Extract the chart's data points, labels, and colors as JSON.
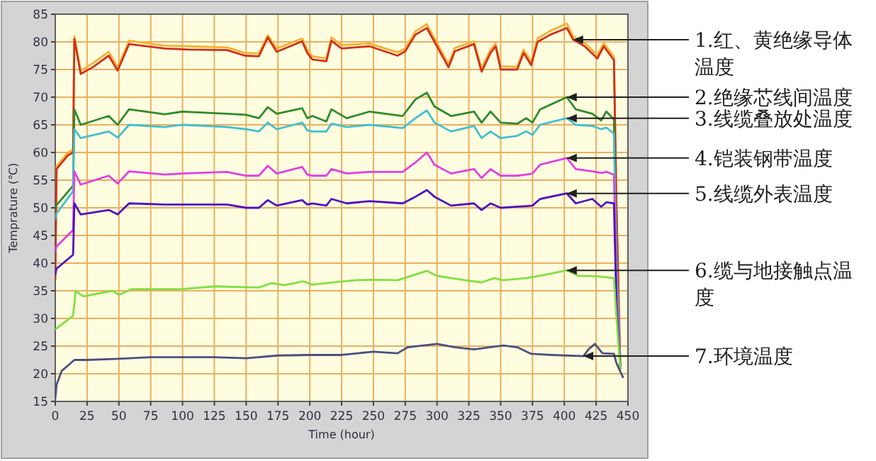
{
  "chart_data": {
    "type": "line",
    "xlabel": "Time (hour)",
    "ylabel": "Temprature (℃)",
    "xlim": [
      0,
      450
    ],
    "ylim": [
      15,
      85
    ],
    "xticks": [
      0,
      25,
      50,
      75,
      100,
      125,
      150,
      175,
      200,
      225,
      250,
      275,
      300,
      325,
      350,
      375,
      400,
      425,
      450
    ],
    "yticks": [
      15,
      20,
      25,
      30,
      35,
      40,
      45,
      50,
      55,
      60,
      65,
      70,
      75,
      80,
      85
    ],
    "grid": true,
    "series": [
      {
        "color": "#f8b030",
        "x": [
          0,
          1,
          10,
          14,
          15,
          20,
          30,
          42,
          49,
          58,
          86,
          105,
          135,
          149,
          160,
          167,
          174,
          194,
          198,
          202,
          213,
          217,
          225,
          247,
          269,
          275,
          283,
          292,
          298,
          309,
          314,
          329,
          335,
          342,
          346,
          350,
          363,
          368,
          374,
          379,
          389,
          402,
          407,
          416,
          426,
          431,
          439,
          441,
          444
        ],
        "values": [
          37.5,
          57.5,
          60,
          60.5,
          81,
          74.8,
          76.2,
          78.2,
          75.4,
          80.2,
          79.3,
          79.2,
          79,
          78,
          77.9,
          81.2,
          78.8,
          80.6,
          78.6,
          77.4,
          77,
          80.8,
          79.4,
          79.7,
          78.1,
          78.8,
          81.9,
          83.2,
          80.6,
          76,
          78.9,
          80.1,
          75.2,
          78.6,
          79.7,
          75.6,
          75.5,
          78.6,
          76.4,
          80.6,
          82,
          83.3,
          81,
          79.8,
          77.6,
          79.8,
          77.3,
          50,
          21.5
        ]
      },
      {
        "name": "1.红、黄绝缘导体温度",
        "color": "#d03018",
        "x": [
          0,
          1,
          10,
          14,
          15,
          20,
          30,
          42,
          49,
          58,
          86,
          105,
          135,
          149,
          160,
          167,
          174,
          194,
          198,
          202,
          213,
          217,
          225,
          247,
          269,
          275,
          283,
          292,
          298,
          309,
          314,
          329,
          335,
          342,
          346,
          350,
          363,
          368,
          374,
          379,
          389,
          402,
          407,
          416,
          426,
          431,
          439,
          441,
          444
        ],
        "values": [
          37,
          57,
          59.5,
          60,
          80.5,
          74.2,
          75.5,
          77.5,
          74.8,
          79.6,
          78.8,
          78.6,
          78.5,
          77.5,
          77.4,
          80.8,
          78.2,
          80.1,
          78,
          76.8,
          76.5,
          80.2,
          78.8,
          79.2,
          77.5,
          78.3,
          81.3,
          82.5,
          80,
          75.4,
          78.3,
          79.6,
          74.6,
          78,
          79.2,
          75,
          75,
          78,
          75.8,
          80,
          81.3,
          82.5,
          80.4,
          79.2,
          77,
          79.2,
          76.7,
          50,
          21
        ]
      },
      {
        "name": "2.绝缘芯线间温度",
        "color": "#2e8b2e",
        "x": [
          0,
          1,
          14,
          15,
          20,
          42,
          49,
          58,
          86,
          100,
          135,
          150,
          160,
          167,
          174,
          194,
          198,
          202,
          213,
          217,
          229,
          247,
          273,
          283,
          292,
          298,
          311,
          329,
          335,
          342,
          350,
          363,
          370,
          375,
          381,
          402,
          409,
          422,
          429,
          433,
          439,
          441,
          444
        ],
        "values": [
          50,
          50.5,
          54,
          67.8,
          65,
          66.6,
          65,
          67.8,
          66.9,
          67.4,
          67,
          66.8,
          66.2,
          68.2,
          67,
          68,
          66.2,
          66.6,
          65.6,
          67.8,
          66.2,
          67.4,
          66.6,
          69.6,
          70.8,
          68.3,
          66.6,
          67.4,
          65.4,
          67.4,
          65.4,
          65.2,
          66.2,
          65.4,
          67.8,
          70,
          67.8,
          67,
          65.8,
          67.4,
          66,
          40,
          21
        ]
      },
      {
        "name": "3.线缆叠放处温度",
        "color": "#40c0d0",
        "x": [
          0,
          1,
          14,
          15,
          20,
          42,
          49,
          58,
          86,
          100,
          135,
          150,
          160,
          167,
          174,
          194,
          198,
          202,
          213,
          217,
          229,
          247,
          273,
          283,
          292,
          298,
          311,
          329,
          335,
          342,
          350,
          363,
          370,
          375,
          381,
          402,
          409,
          422,
          429,
          433,
          439,
          441,
          444
        ],
        "values": [
          48,
          49,
          53,
          64.2,
          62.6,
          63.8,
          62.7,
          65,
          64.6,
          65,
          64.6,
          64.2,
          63.8,
          65.4,
          64.2,
          65.4,
          64,
          63.8,
          63.8,
          65.2,
          64.6,
          65,
          64.4,
          66.2,
          67.6,
          65.4,
          63.8,
          64.8,
          62.6,
          63.8,
          62.6,
          63,
          63.8,
          63.2,
          65,
          66.2,
          65,
          64.8,
          64.2,
          64.5,
          63.4,
          40,
          21
        ]
      },
      {
        "name": "4.铠装钢带温度",
        "color": "#e040e0",
        "x": [
          0,
          1,
          14,
          15,
          20,
          42,
          49,
          58,
          86,
          100,
          135,
          150,
          160,
          167,
          174,
          194,
          198,
          202,
          213,
          217,
          229,
          247,
          273,
          283,
          292,
          298,
          311,
          329,
          335,
          342,
          350,
          363,
          370,
          375,
          381,
          402,
          409,
          422,
          429,
          433,
          439,
          441,
          444
        ],
        "values": [
          42,
          43,
          46,
          56.6,
          54.2,
          55.8,
          54.4,
          56.6,
          56,
          56.2,
          56.5,
          55.8,
          55.8,
          57.6,
          56.2,
          57.4,
          56,
          55.8,
          55.8,
          57,
          56.2,
          56.5,
          56.5,
          58.2,
          60,
          57.8,
          56.2,
          57,
          55.4,
          57,
          55.8,
          55.8,
          56,
          56.2,
          57.8,
          59,
          57,
          56.6,
          56.3,
          56.5,
          56,
          35,
          21
        ]
      },
      {
        "name": "5.线缆外表温度",
        "color": "#5010c0",
        "x": [
          0,
          1,
          14,
          15,
          20,
          42,
          49,
          58,
          86,
          100,
          135,
          150,
          160,
          167,
          174,
          194,
          198,
          202,
          213,
          217,
          229,
          247,
          273,
          283,
          292,
          298,
          311,
          329,
          335,
          342,
          350,
          363,
          370,
          375,
          381,
          402,
          409,
          422,
          429,
          433,
          439,
          441,
          444
        ],
        "values": [
          38,
          39,
          41.5,
          50.8,
          48.8,
          49.6,
          48.8,
          50.8,
          50.6,
          50.6,
          50.6,
          50,
          50,
          51.4,
          50.4,
          51.4,
          50.6,
          50.8,
          50.4,
          51.6,
          50.8,
          51.2,
          50.8,
          52,
          53.2,
          52,
          50.4,
          50.8,
          49.6,
          50.8,
          50,
          50.2,
          50.3,
          50.4,
          51.6,
          52.6,
          50.8,
          51.6,
          50.2,
          51,
          50.8,
          32,
          21
        ]
      },
      {
        "name": "6.缆与地接触点温度",
        "color": "#80e040",
        "x": [
          0,
          14,
          16,
          22,
          45,
          50,
          60,
          100,
          125,
          160,
          170,
          180,
          195,
          202,
          217,
          236,
          250,
          269,
          292,
          300,
          311,
          335,
          345,
          352,
          370,
          381,
          402,
          411,
          426,
          439,
          441,
          444
        ],
        "values": [
          28,
          30.5,
          35,
          34,
          35,
          34.3,
          35.3,
          35.3,
          35.8,
          35.6,
          36.4,
          36,
          36.7,
          36.1,
          36.5,
          36.9,
          37,
          36.9,
          38.6,
          37.7,
          37.3,
          36.5,
          37.3,
          36.9,
          37.3,
          37.7,
          38.7,
          37.7,
          37.6,
          37.3,
          30,
          21
        ]
      },
      {
        "name": "7.环境温度",
        "color": "#4a5080",
        "x": [
          0,
          1,
          5,
          10,
          15,
          25,
          50,
          75,
          125,
          150,
          175,
          200,
          225,
          250,
          269,
          277,
          300,
          314,
          329,
          352,
          363,
          374,
          390,
          415,
          419,
          424,
          430,
          439,
          441,
          446
        ],
        "values": [
          15.5,
          18,
          20.5,
          21.5,
          22.5,
          22.5,
          22.7,
          23,
          23,
          22.8,
          23.3,
          23.4,
          23.4,
          24,
          23.7,
          24.8,
          25.4,
          24.8,
          24.4,
          25.1,
          24.8,
          23.6,
          23.4,
          23.2,
          24.4,
          25.4,
          23.7,
          23.6,
          21.9,
          19.4
        ]
      }
    ]
  }
}
